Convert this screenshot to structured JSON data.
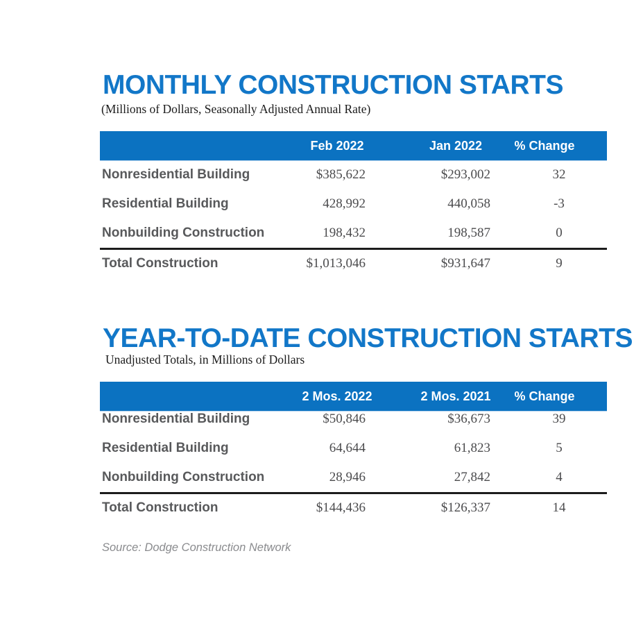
{
  "colors": {
    "header_bar": "#0b72c1",
    "title": "#1277c8",
    "label_gray": "#58595b",
    "value_gray": "#4b4b4d",
    "rule_dark": "#1c1c1c",
    "source_gray": "#8a8b8e"
  },
  "monthly": {
    "title": "MONTHLY CONSTRUCTION STARTS",
    "subtitle": "(Millions of Dollars, Seasonally Adjusted Annual Rate)",
    "columns": [
      "Feb 2022",
      "Jan 2022",
      "% Change"
    ],
    "rows": [
      {
        "label": "Nonresidential Building",
        "values": [
          "$385,622",
          "$293,002",
          "32"
        ]
      },
      {
        "label": "Residential Building",
        "values": [
          "428,992",
          "440,058",
          "-3"
        ]
      },
      {
        "label": "Nonbuilding Construction",
        "values": [
          "198,432",
          "198,587",
          "0"
        ]
      }
    ],
    "total": {
      "label": "Total Construction",
      "values": [
        "$1,013,046",
        "$931,647",
        "9"
      ]
    }
  },
  "ytd": {
    "title": "YEAR-TO-DATE CONSTRUCTION STARTS",
    "subtitle": "Unadjusted Totals, in Millions of Dollars",
    "columns": [
      "2 Mos. 2022",
      "2 Mos. 2021",
      "% Change"
    ],
    "rows": [
      {
        "label": "Nonresidential Building",
        "values": [
          "$50,846",
          "$36,673",
          "39"
        ]
      },
      {
        "label": "Residential Building",
        "values": [
          "64,644",
          "61,823",
          "5"
        ]
      },
      {
        "label": "Nonbuilding Construction",
        "values": [
          "28,946",
          "27,842",
          "4"
        ]
      }
    ],
    "total": {
      "label": "Total Construction",
      "values": [
        "$144,436",
        "$126,337",
        "14"
      ]
    }
  },
  "source": {
    "text": "Source: Dodge Construction Network"
  }
}
